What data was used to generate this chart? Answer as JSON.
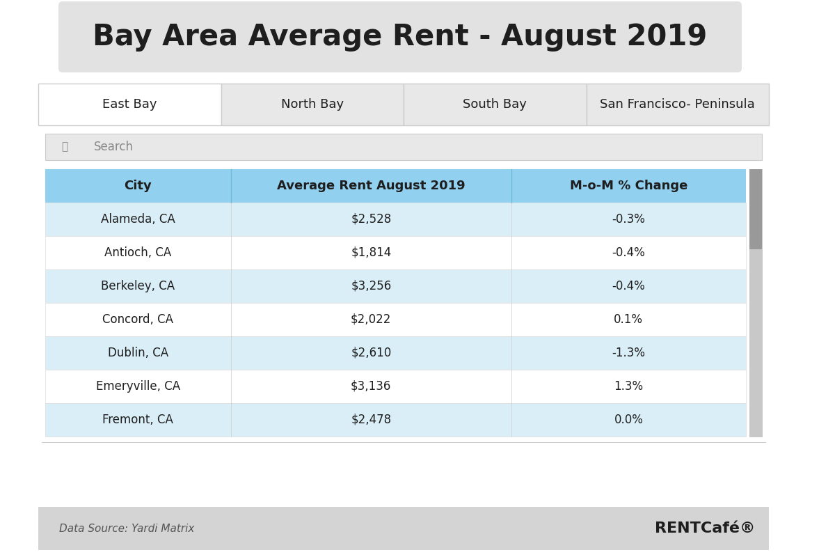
{
  "title": "Bay Area Average Rent - August 2019",
  "title_bg_color": "#e2e2e2",
  "title_font_size": 30,
  "tabs": [
    "East Bay",
    "North Bay",
    "South Bay",
    "San Francisco- Peninsula"
  ],
  "active_tab": 0,
  "active_tab_bg": "#ffffff",
  "inactive_tab_bg": "#e8e8e8",
  "search_placeholder": "Search",
  "header_bg_color": "#92d0f0",
  "header_columns": [
    "City",
    "Average Rent August 2019",
    "M-o-M % Change"
  ],
  "rows": [
    {
      "city": "Alameda, CA",
      "rent": "$2,528",
      "change": "-0.3%",
      "striped": true
    },
    {
      "city": "Antioch, CA",
      "rent": "$1,814",
      "change": "-0.4%",
      "striped": false
    },
    {
      "city": "Berkeley, CA",
      "rent": "$3,256",
      "change": "-0.4%",
      "striped": true
    },
    {
      "city": "Concord, CA",
      "rent": "$2,022",
      "change": "0.1%",
      "striped": false
    },
    {
      "city": "Dublin, CA",
      "rent": "$2,610",
      "change": "-1.3%",
      "striped": true
    },
    {
      "city": "Emeryville, CA",
      "rent": "$3,136",
      "change": "1.3%",
      "striped": false
    },
    {
      "city": "Fremont, CA",
      "rent": "$2,478",
      "change": "0.0%",
      "striped": true
    }
  ],
  "stripe_color": "#daeef8",
  "white_color": "#ffffff",
  "footer_bg_color": "#d4d4d4",
  "footer_source": "Data Source: Yardi Matrix",
  "footer_brand": "RENTCafé®",
  "scrollbar_track": "#c8c8c8",
  "scrollbar_handle": "#999999",
  "outer_bg_color": "#ffffff",
  "text_color": "#1e1e1e",
  "tab_border_color": "#cccccc",
  "content_border_color": "#cccccc"
}
